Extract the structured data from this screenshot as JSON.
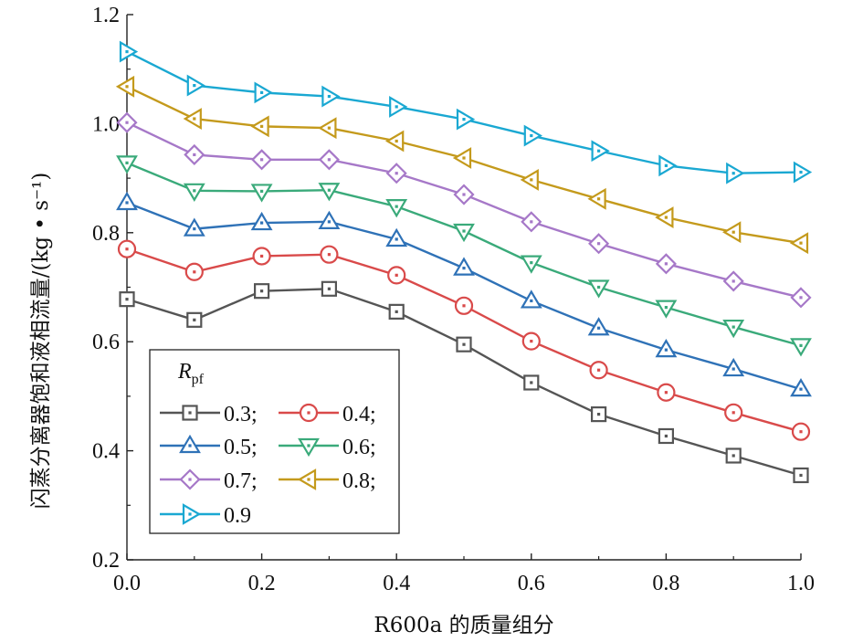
{
  "chart_data": {
    "type": "line",
    "xlabel": "R600a 的质量组分",
    "ylabel": "闪蒸分离器饱和液相流量/(kg • s⁻¹)",
    "xlim": [
      0,
      1.0
    ],
    "ylim": [
      0.2,
      1.2
    ],
    "x_ticks": [
      "0.0",
      "0.2",
      "0.4",
      "0.6",
      "0.8",
      "1.0"
    ],
    "y_ticks": [
      "0.2",
      "0.4",
      "0.6",
      "0.8",
      "1.0",
      "1.2"
    ],
    "grid": false,
    "legend": {
      "title_main": "R",
      "title_sub": "pf",
      "placement": "bottom-left"
    },
    "x": [
      0.0,
      0.1,
      0.2,
      0.3,
      0.4,
      0.5,
      0.6,
      0.7,
      0.8,
      0.9,
      1.0
    ],
    "series": [
      {
        "name": "0.3",
        "legend_label": "0.3;",
        "color": "#555555",
        "marker": "square",
        "values": [
          0.678,
          0.64,
          0.693,
          0.697,
          0.655,
          0.595,
          0.525,
          0.467,
          0.427,
          0.391,
          0.355
        ]
      },
      {
        "name": "0.4",
        "legend_label": "0.4;",
        "color": "#d94a4a",
        "marker": "circle",
        "values": [
          0.77,
          0.728,
          0.757,
          0.76,
          0.722,
          0.666,
          0.601,
          0.548,
          0.507,
          0.47,
          0.435
        ]
      },
      {
        "name": "0.5",
        "legend_label": "0.5;",
        "color": "#2f72b7",
        "marker": "triangle-up",
        "values": [
          0.855,
          0.807,
          0.818,
          0.82,
          0.788,
          0.735,
          0.675,
          0.625,
          0.585,
          0.55,
          0.513
        ]
      },
      {
        "name": "0.6",
        "legend_label": "0.6;",
        "color": "#3aaa7a",
        "marker": "triangle-down",
        "values": [
          0.928,
          0.877,
          0.876,
          0.878,
          0.848,
          0.803,
          0.745,
          0.7,
          0.663,
          0.627,
          0.593
        ]
      },
      {
        "name": "0.7",
        "legend_label": "0.7;",
        "color": "#a678c8",
        "marker": "diamond",
        "values": [
          1.002,
          0.943,
          0.934,
          0.934,
          0.909,
          0.87,
          0.82,
          0.78,
          0.743,
          0.711,
          0.681
        ]
      },
      {
        "name": "0.8",
        "legend_label": "0.8;",
        "color": "#c49a1c",
        "marker": "triangle-left",
        "values": [
          1.068,
          1.009,
          0.995,
          0.992,
          0.968,
          0.937,
          0.897,
          0.862,
          0.828,
          0.801,
          0.781
        ]
      },
      {
        "name": "0.9",
        "legend_label": "0.9",
        "color": "#1aa8d2",
        "marker": "triangle-right",
        "values": [
          1.132,
          1.07,
          1.057,
          1.05,
          1.031,
          1.008,
          0.978,
          0.95,
          0.923,
          0.909,
          0.911
        ]
      }
    ]
  }
}
